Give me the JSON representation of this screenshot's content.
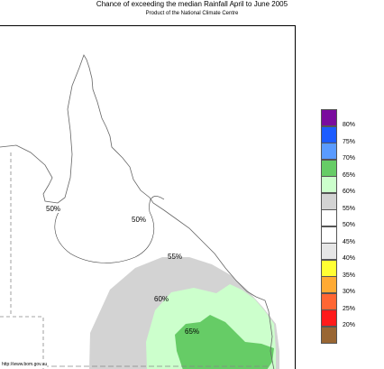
{
  "map": {
    "title": "Chance of exceeding the median Rainfall April to June 2005",
    "subtitle": "Product of the National Climate Centre",
    "credit": "http://www.bom.gov.au",
    "contour_labels": {
      "fifty_north": "50%",
      "fifty_east": "50%",
      "fifty_five": "55%",
      "sixty": "60%",
      "sixty_five": "65%"
    },
    "colors": {
      "band_50_55": "#ffffff",
      "band_55_60": "#d3d3d3",
      "band_60_65": "#ccffcc",
      "band_65_70": "#66cc66",
      "coastline": "#666666",
      "border_dash": "#888888"
    }
  },
  "legend": {
    "items": [
      {
        "label": "80%",
        "color": "#7a0c9e"
      },
      {
        "label": "75%",
        "color": "#1c5cff"
      },
      {
        "label": "70%",
        "color": "#5a9bff"
      },
      {
        "label": "65%",
        "color": "#66cc66"
      },
      {
        "label": "60%",
        "color": "#ccffcc"
      },
      {
        "label": "55%",
        "color": "#d3d3d3"
      },
      {
        "label": "50%",
        "color": "#ffffff"
      },
      {
        "label": "45%",
        "color": "#ffffff"
      },
      {
        "label": "40%",
        "color": "#e6e6e6"
      },
      {
        "label": "35%",
        "color": "#ffff33"
      },
      {
        "label": "30%",
        "color": "#ffaa33"
      },
      {
        "label": "25%",
        "color": "#ff6633"
      },
      {
        "label": "20%",
        "color": "#ff1a1a"
      },
      {
        "label": "",
        "color": "#996633"
      }
    ]
  }
}
